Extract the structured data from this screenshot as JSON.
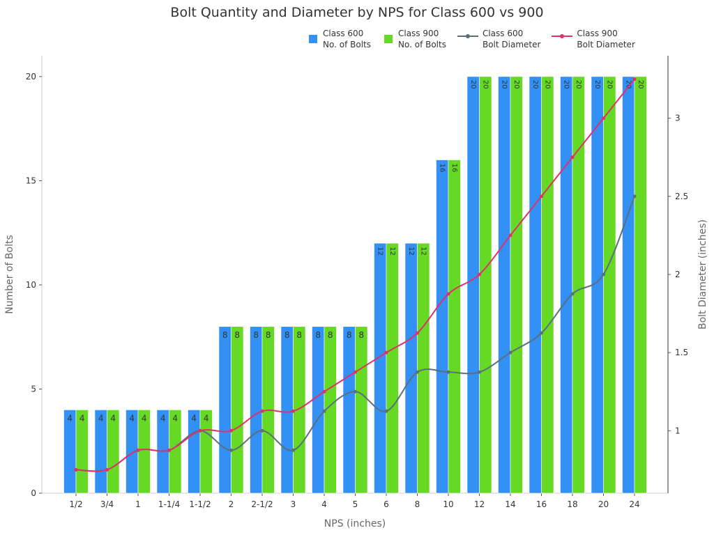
{
  "chart_data": {
    "type": "bar",
    "title": "Bolt Quantity and Diameter by NPS for Class 600 vs 900",
    "xlabel": "NPS (inches)",
    "ylabel": "Number of Bolts",
    "y2label": "Bolt Diameter (inches)",
    "ylim": [
      0,
      21
    ],
    "y2lim": [
      0.6,
      3.4
    ],
    "yticks": [
      0,
      5,
      10,
      15,
      20
    ],
    "y2ticks": [
      1,
      1.5,
      2,
      2.5,
      3
    ],
    "grid": false,
    "legend_position": "top-right",
    "categories": [
      "1/2",
      "3/4",
      "1",
      "1-1/4",
      "1-1/2",
      "2",
      "2-1/2",
      "3",
      "4",
      "5",
      "6",
      "8",
      "10",
      "12",
      "14",
      "16",
      "18",
      "20",
      "24"
    ],
    "series": [
      {
        "name": "Class 600\nNo. of Bolts",
        "kind": "bar",
        "axis": "left",
        "color": "#3391f5",
        "values": [
          4,
          4,
          4,
          4,
          4,
          8,
          8,
          8,
          8,
          8,
          12,
          12,
          16,
          20,
          20,
          20,
          20,
          20,
          20
        ]
      },
      {
        "name": "Class 900\nNo. of Bolts",
        "kind": "bar",
        "axis": "left",
        "color": "#66d924",
        "values": [
          4,
          4,
          4,
          4,
          4,
          8,
          8,
          8,
          8,
          8,
          12,
          12,
          16,
          20,
          20,
          20,
          20,
          20,
          20
        ]
      },
      {
        "name": "Class 600\nBolt Diameter",
        "kind": "line",
        "axis": "right",
        "color": "#5b6e7c",
        "values": [
          0.75,
          0.75,
          0.875,
          0.875,
          1,
          0.875,
          1,
          0.875,
          1.125,
          1.25,
          1.125,
          1.375,
          1.375,
          1.375,
          1.5,
          1.625,
          1.875,
          2,
          2.5
        ]
      },
      {
        "name": "Class 900\nBolt Diameter",
        "kind": "line",
        "axis": "right",
        "color": "#e0306a",
        "values": [
          0.75,
          0.75,
          0.875,
          0.875,
          1,
          1,
          1.125,
          1.125,
          1.25,
          1.375,
          1.5,
          1.625,
          1.875,
          2,
          2.25,
          2.5,
          2.75,
          3,
          3.25
        ]
      }
    ]
  }
}
